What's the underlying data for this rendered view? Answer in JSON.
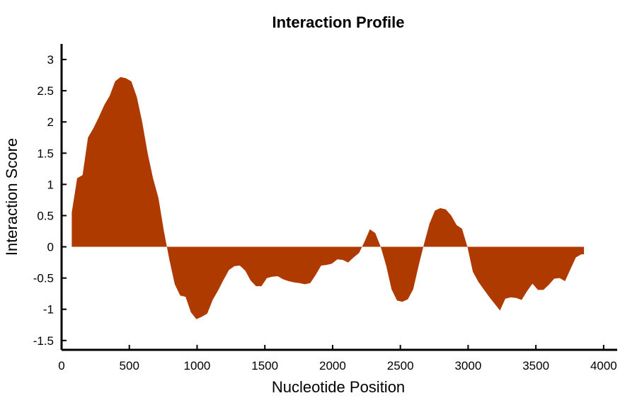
{
  "chart_data": {
    "type": "area",
    "title": "Interaction Profile",
    "xlabel": "Nucleotide Position",
    "ylabel": "Interaction Score",
    "xlim": [
      0,
      4100
    ],
    "ylim": [
      -1.65,
      3.25
    ],
    "xticks": [
      0,
      500,
      1000,
      1500,
      2000,
      2500,
      3000,
      3500,
      4000
    ],
    "xtick_labels": [
      "0",
      "500",
      "1000",
      "1500",
      "2000",
      "2500",
      "3000",
      "3500",
      "4000"
    ],
    "yticks": [
      -1.5,
      -1,
      -0.5,
      0,
      0.5,
      1,
      1.5,
      2,
      2.5,
      3
    ],
    "ytick_labels": [
      "-1.5",
      "-1",
      "-0.5",
      "0",
      "0.5",
      "1",
      "1.5",
      "2",
      "2.5",
      "3"
    ],
    "grid": false,
    "color": "#ae3a00",
    "series": [
      {
        "x": [
          75,
          115,
          155,
          195,
          235,
          275,
          315,
          355,
          395,
          435,
          475,
          515,
          555,
          595,
          635,
          675,
          715,
          755,
          795,
          835,
          875,
          915,
          955,
          995,
          1035,
          1075,
          1115,
          1155,
          1195,
          1235,
          1275,
          1315,
          1355,
          1395,
          1435,
          1475,
          1515,
          1555,
          1595,
          1635,
          1675,
          1715,
          1755,
          1795,
          1835,
          1875,
          1915,
          1955,
          1995,
          2035,
          2075,
          2115,
          2155,
          2195,
          2235,
          2275,
          2315,
          2355,
          2395,
          2435,
          2475,
          2515,
          2555,
          2595,
          2635,
          2675,
          2715,
          2755,
          2795,
          2835,
          2875,
          2915,
          2955,
          2995,
          3035,
          3075,
          3115,
          3155,
          3195,
          3235,
          3275,
          3315,
          3355,
          3395,
          3435,
          3475,
          3515,
          3555,
          3595,
          3635,
          3675,
          3715,
          3755,
          3795,
          3835,
          3855
        ],
        "y": [
          0.55,
          1.1,
          1.15,
          1.75,
          1.9,
          2.08,
          2.27,
          2.42,
          2.65,
          2.72,
          2.7,
          2.65,
          2.4,
          2.0,
          1.5,
          1.1,
          0.78,
          0.25,
          -0.2,
          -0.6,
          -0.78,
          -0.8,
          -1.05,
          -1.16,
          -1.12,
          -1.07,
          -0.85,
          -0.7,
          -0.53,
          -0.37,
          -0.31,
          -0.3,
          -0.38,
          -0.54,
          -0.63,
          -0.63,
          -0.5,
          -0.48,
          -0.47,
          -0.52,
          -0.55,
          -0.57,
          -0.58,
          -0.6,
          -0.58,
          -0.45,
          -0.3,
          -0.29,
          -0.27,
          -0.2,
          -0.21,
          -0.25,
          -0.17,
          -0.1,
          0.08,
          0.28,
          0.22,
          0.0,
          -0.3,
          -0.68,
          -0.86,
          -0.88,
          -0.84,
          -0.68,
          -0.3,
          0.05,
          0.37,
          0.58,
          0.62,
          0.6,
          0.5,
          0.35,
          0.29,
          0.0,
          -0.4,
          -0.56,
          -0.68,
          -0.8,
          -0.91,
          -1.02,
          -0.83,
          -0.81,
          -0.82,
          -0.85,
          -0.71,
          -0.59,
          -0.69,
          -0.69,
          -0.61,
          -0.51,
          -0.5,
          -0.55,
          -0.36,
          -0.17,
          -0.12,
          -0.12
        ]
      }
    ]
  }
}
